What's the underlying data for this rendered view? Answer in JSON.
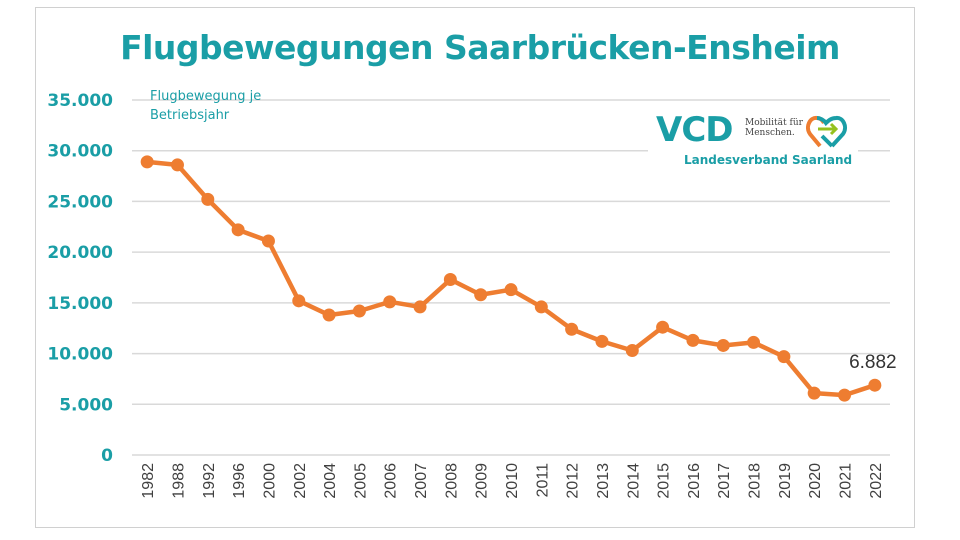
{
  "chart_data": {
    "type": "line",
    "title": "Flugbewegungen Saarbrücken-Ensheim",
    "subtitle_lines": [
      "Flugbewegung je",
      "Betriebsjahr"
    ],
    "xlabel": "",
    "ylabel": "",
    "categories": [
      "1982",
      "1988",
      "1992",
      "1996",
      "2000",
      "2002",
      "2004",
      "2005",
      "2006",
      "2007",
      "2008",
      "2009",
      "2010",
      "2011",
      "2012",
      "2013",
      "2014",
      "2015",
      "2016",
      "2017",
      "2018",
      "2019",
      "2020",
      "2021",
      "2022"
    ],
    "series": [
      {
        "name": "Flugbewegungen",
        "color": "#ee7d31",
        "values": [
          28900,
          28600,
          25200,
          22200,
          21100,
          15200,
          13800,
          14200,
          15100,
          14600,
          17300,
          15800,
          16300,
          14600,
          12400,
          11200,
          10300,
          12600,
          11300,
          10800,
          11100,
          9700,
          6100,
          5900,
          6882
        ]
      }
    ],
    "ylim": [
      0,
      35000
    ],
    "yticks": [
      0,
      5000,
      10000,
      15000,
      20000,
      25000,
      30000,
      35000
    ],
    "ytick_labels": [
      "0",
      "5.000",
      "10.000",
      "15.000",
      "20.000",
      "25.000",
      "30.000",
      "35.000"
    ],
    "grid": true,
    "annotations": [
      {
        "category": "2022",
        "text": "6.882"
      }
    ]
  },
  "logo": {
    "brand": "VCD",
    "tagline_1": "Mobilität für",
    "tagline_2": "Menschen.",
    "org": "Landesverband Saarland"
  },
  "colors": {
    "accent": "#1a9ea6",
    "line": "#ee7d31",
    "grid": "#d9d9d9"
  }
}
